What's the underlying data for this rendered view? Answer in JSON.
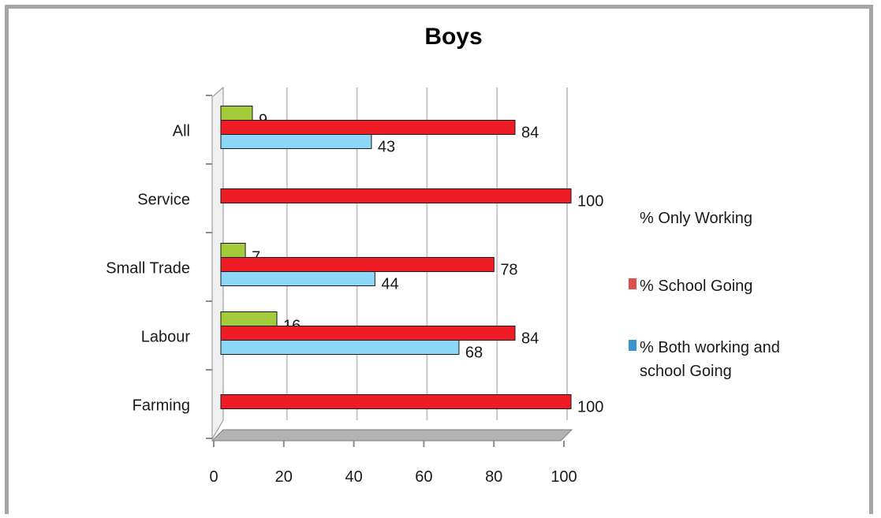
{
  "chart_data": {
    "type": "bar",
    "orientation": "horizontal",
    "title": "Boys",
    "categories": [
      "All",
      "Service",
      "Small Trade",
      "Labour",
      "Farming"
    ],
    "series": [
      {
        "name": "% Only Working",
        "values": [
          9,
          null,
          7,
          16,
          null
        ],
        "color": "#a4cc3a"
      },
      {
        "name": "% School Going",
        "values": [
          84,
          100,
          78,
          84,
          100
        ],
        "color": "#ee1c25"
      },
      {
        "name": "% Both working and school Going",
        "values": [
          43,
          null,
          44,
          68,
          null
        ],
        "color": "#8dd8f8"
      }
    ],
    "legend": [
      {
        "name": "% Only Working",
        "marker_color": ""
      },
      {
        "name": "% School Going",
        "marker_color": "#e0504e"
      },
      {
        "name": "% Both working and school Going",
        "marker_color": "#3a93d0"
      }
    ],
    "x_ticks": [
      "0",
      "20",
      "40",
      "60",
      "80",
      "100"
    ],
    "xlim": [
      0,
      100
    ],
    "grid": true,
    "legend_position": "right"
  }
}
